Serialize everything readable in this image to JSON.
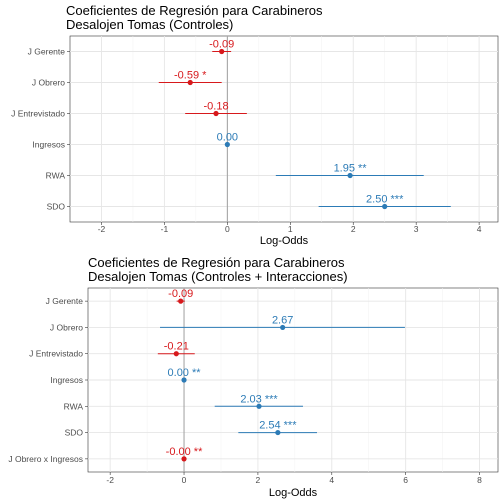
{
  "colors": {
    "negative": "#d7191c",
    "positive": "#2c7bb6"
  },
  "chart_data": [
    {
      "type": "scatter",
      "title": "Coeficientes de Regresión para Carabineros",
      "subtitle": "Desalojen Tomas (Controles)",
      "xlabel": "Log-Odds",
      "ylabel": "",
      "xlim": [
        -2.5,
        4.3
      ],
      "x_ticks": [
        -2,
        -1,
        0,
        1,
        2,
        3,
        4
      ],
      "x_tick_labels": [
        "-2",
        "-1",
        "0",
        "1",
        "2",
        "3",
        "4"
      ],
      "grid": true,
      "legend": "none",
      "points": [
        {
          "term": "J Gerente",
          "estimate": -0.09,
          "low": -0.24,
          "high": 0.06,
          "label": "-0.09",
          "color": "#d7191c"
        },
        {
          "term": "J Obrero",
          "estimate": -0.59,
          "low": -1.09,
          "high": -0.09,
          "label": "-0.59 *",
          "color": "#d7191c"
        },
        {
          "term": "J Entrevistado",
          "estimate": -0.18,
          "low": -0.67,
          "high": 0.31,
          "label": "-0.18",
          "color": "#d7191c"
        },
        {
          "term": "Ingresos",
          "estimate": 0.0,
          "low": -0.01,
          "high": 0.01,
          "label": "0.00",
          "color": "#2c7bb6"
        },
        {
          "term": "RWA",
          "estimate": 1.95,
          "low": 0.77,
          "high": 3.12,
          "label": "1.95 **",
          "color": "#2c7bb6"
        },
        {
          "term": "SDO",
          "estimate": 2.5,
          "low": 1.45,
          "high": 3.55,
          "label": "2.50 ***",
          "color": "#2c7bb6"
        }
      ]
    },
    {
      "type": "scatter",
      "title": "Coeficientes de Regresión para Carabineros",
      "subtitle": "Desalojen Tomas (Controles + Interacciones)",
      "xlabel": "Log-Odds",
      "ylabel": "",
      "xlim": [
        -2.6,
        8.5
      ],
      "x_ticks": [
        -2,
        0,
        2,
        4,
        6,
        8
      ],
      "x_tick_labels": [
        "-2",
        "0",
        "2",
        "4",
        "6",
        "8"
      ],
      "grid": true,
      "legend": "none",
      "points": [
        {
          "term": "J Gerente",
          "estimate": -0.09,
          "low": -0.2,
          "high": 0.02,
          "label": "-0.09",
          "color": "#d7191c"
        },
        {
          "term": "J Obrero",
          "estimate": 2.67,
          "low": -0.65,
          "high": 5.98,
          "label": "2.67",
          "color": "#2c7bb6"
        },
        {
          "term": "J Entrevistado",
          "estimate": -0.21,
          "low": -0.71,
          "high": 0.29,
          "label": "-0.21",
          "color": "#d7191c"
        },
        {
          "term": "Ingresos",
          "estimate": 0.0,
          "low": -0.01,
          "high": 0.01,
          "label": "0.00 **",
          "color": "#2c7bb6"
        },
        {
          "term": "RWA",
          "estimate": 2.03,
          "low": 0.83,
          "high": 3.22,
          "label": "2.03 ***",
          "color": "#2c7bb6"
        },
        {
          "term": "SDO",
          "estimate": 2.54,
          "low": 1.47,
          "high": 3.6,
          "label": "2.54 ***",
          "color": "#2c7bb6"
        },
        {
          "term": "J Obrero x Ingresos",
          "estimate": -0.0,
          "low": -0.01,
          "high": 0.01,
          "label": "-0.00 **",
          "color": "#d7191c"
        }
      ]
    }
  ]
}
